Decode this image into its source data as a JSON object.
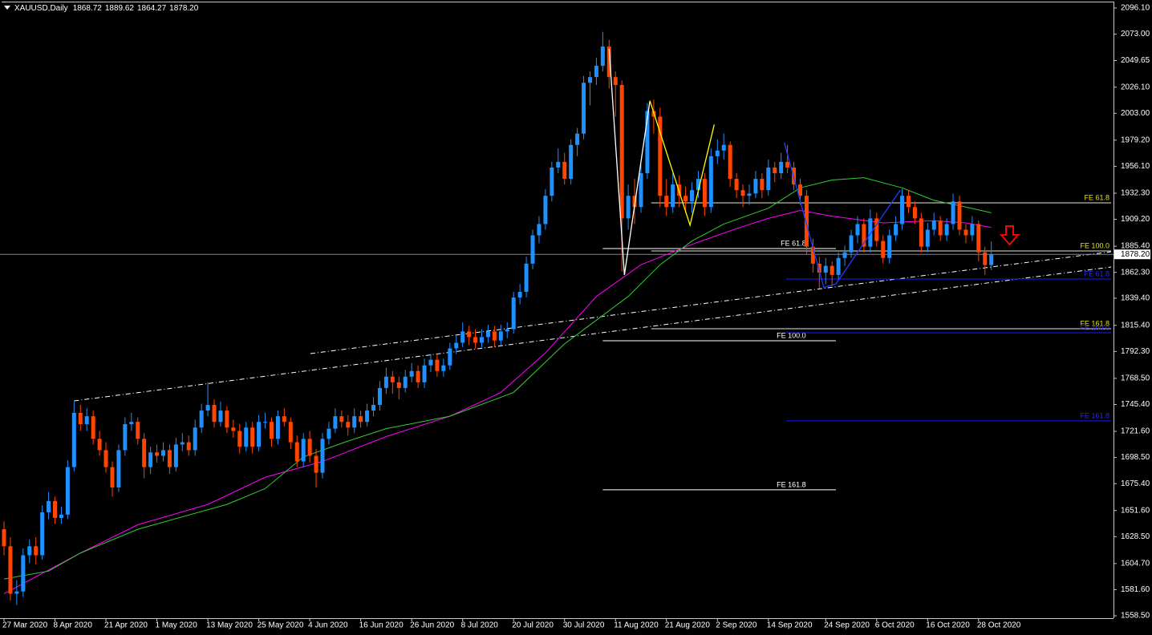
{
  "chart_data": {
    "type": "candlestick",
    "header": {
      "symbol": "XAUUSD,Daily",
      "values": [
        "1868.72",
        "1889.62",
        "1864.27",
        "1878.20"
      ]
    },
    "ylim": [
      1558.5,
      2096.1
    ],
    "yticks": [
      {
        "value": 2096.1,
        "label": "2096.10"
      },
      {
        "value": 2073,
        "label": "2073.00"
      },
      {
        "value": 2049.65,
        "label": "2049.65"
      },
      {
        "value": 2026.1,
        "label": "2026.10"
      },
      {
        "value": 2003,
        "label": "2003.00"
      },
      {
        "value": 1979.2,
        "label": "1979.20"
      },
      {
        "value": 1956.1,
        "label": "1956.10"
      },
      {
        "value": 1932.3,
        "label": "1932.30"
      },
      {
        "value": 1909.2,
        "label": "1909.20"
      },
      {
        "value": 1885.4,
        "label": "1885.40"
      },
      {
        "value": 1862.3,
        "label": "1862.30"
      },
      {
        "value": 1839.4,
        "label": "1839.40"
      },
      {
        "value": 1815.4,
        "label": "1815.40"
      },
      {
        "value": 1792.3,
        "label": "1792.30"
      },
      {
        "value": 1768.5,
        "label": "1768.50"
      },
      {
        "value": 1745.4,
        "label": "1745.40"
      },
      {
        "value": 1721.6,
        "label": "1721.60"
      },
      {
        "value": 1698.5,
        "label": "1698.50"
      },
      {
        "value": 1675.4,
        "label": "1675.40"
      },
      {
        "value": 1651.6,
        "label": "1651.60"
      },
      {
        "value": 1628.5,
        "label": "1628.50"
      },
      {
        "value": 1604.7,
        "label": "1604.70"
      },
      {
        "value": 1581.6,
        "label": "1581.60"
      },
      {
        "value": 1558.5,
        "label": "1558.50"
      }
    ],
    "bull_color": "#1e90ff",
    "bear_color": "#ff4500",
    "categories": [
      "27 Mar 2020",
      null,
      null,
      null,
      null,
      null,
      null,
      null,
      "8 Apr 2020",
      null,
      null,
      null,
      null,
      null,
      null,
      null,
      "21 Apr 2020",
      null,
      null,
      null,
      null,
      null,
      null,
      null,
      "1 May 2020",
      null,
      null,
      null,
      null,
      null,
      null,
      null,
      "13 May 2020",
      null,
      null,
      null,
      null,
      null,
      null,
      null,
      "25 May 2020",
      null,
      null,
      null,
      null,
      null,
      null,
      null,
      "4 Jun 2020",
      null,
      null,
      null,
      null,
      null,
      null,
      null,
      "16 Jun 2020",
      null,
      null,
      null,
      null,
      null,
      null,
      null,
      "26 Jun 2020",
      null,
      null,
      null,
      null,
      null,
      null,
      null,
      "8 Jul 2020",
      null,
      null,
      null,
      null,
      null,
      null,
      null,
      "20 Jul 2020",
      null,
      null,
      null,
      null,
      null,
      null,
      null,
      "30 Jul 2020",
      null,
      null,
      null,
      null,
      null,
      null,
      null,
      "11 Aug 2020",
      null,
      null,
      null,
      null,
      null,
      null,
      null,
      "21 Aug 2020",
      null,
      null,
      null,
      null,
      null,
      null,
      null,
      "2 Sep 2020",
      null,
      null,
      null,
      null,
      null,
      null,
      null,
      "14 Sep 2020",
      null,
      null,
      null,
      null,
      null,
      null,
      null,
      null,
      "24 Sep 2020",
      null,
      null,
      null,
      null,
      null,
      null,
      null,
      "6 Oct 2020",
      null,
      null,
      null,
      null,
      null,
      null,
      null,
      "16 Oct 2020",
      null,
      null,
      null,
      null,
      null,
      null,
      null,
      "28 Oct 2020",
      null,
      null
    ],
    "candles": [
      [
        1635,
        1642,
        1612,
        1620
      ],
      [
        1620,
        1628,
        1572,
        1578
      ],
      [
        1578,
        1590,
        1568,
        1580
      ],
      [
        1580,
        1618,
        1575,
        1612
      ],
      [
        1612,
        1626,
        1605,
        1620
      ],
      [
        1620,
        1628,
        1604,
        1612
      ],
      [
        1612,
        1656,
        1608,
        1650
      ],
      [
        1650,
        1668,
        1644,
        1660
      ],
      [
        1660,
        1664,
        1640,
        1645
      ],
      [
        1645,
        1655,
        1640,
        1648
      ],
      [
        1648,
        1696,
        1644,
        1690
      ],
      [
        1690,
        1748,
        1686,
        1738
      ],
      [
        1738,
        1745,
        1722,
        1728
      ],
      [
        1728,
        1742,
        1722,
        1735
      ],
      [
        1735,
        1740,
        1710,
        1715
      ],
      [
        1715,
        1722,
        1700,
        1705
      ],
      [
        1705,
        1712,
        1685,
        1690
      ],
      [
        1690,
        1695,
        1664,
        1672
      ],
      [
        1672,
        1710,
        1668,
        1705
      ],
      [
        1705,
        1734,
        1700,
        1728
      ],
      [
        1728,
        1738,
        1722,
        1730
      ],
      [
        1730,
        1734,
        1710,
        1715
      ],
      [
        1715,
        1720,
        1680,
        1690
      ],
      [
        1690,
        1708,
        1684,
        1703
      ],
      [
        1703,
        1710,
        1694,
        1700
      ],
      [
        1700,
        1712,
        1695,
        1705
      ],
      [
        1705,
        1710,
        1684,
        1690
      ],
      [
        1690,
        1716,
        1686,
        1710
      ],
      [
        1710,
        1720,
        1704,
        1712
      ],
      [
        1712,
        1718,
        1700,
        1705
      ],
      [
        1705,
        1732,
        1700,
        1725
      ],
      [
        1725,
        1746,
        1720,
        1740
      ],
      [
        1740,
        1765,
        1735,
        1745
      ],
      [
        1745,
        1750,
        1725,
        1730
      ],
      [
        1730,
        1748,
        1726,
        1740
      ],
      [
        1740,
        1744,
        1720,
        1725
      ],
      [
        1725,
        1732,
        1716,
        1722
      ],
      [
        1722,
        1728,
        1702,
        1708
      ],
      [
        1708,
        1730,
        1704,
        1725
      ],
      [
        1725,
        1730,
        1702,
        1708
      ],
      [
        1708,
        1736,
        1704,
        1730
      ],
      [
        1730,
        1738,
        1724,
        1730
      ],
      [
        1730,
        1734,
        1708,
        1715
      ],
      [
        1715,
        1740,
        1710,
        1735
      ],
      [
        1735,
        1742,
        1726,
        1730
      ],
      [
        1730,
        1734,
        1706,
        1712
      ],
      [
        1712,
        1718,
        1690,
        1695
      ],
      [
        1695,
        1720,
        1690,
        1715
      ],
      [
        1715,
        1722,
        1694,
        1700
      ],
      [
        1700,
        1706,
        1672,
        1685
      ],
      [
        1685,
        1720,
        1680,
        1715
      ],
      [
        1715,
        1730,
        1710,
        1724
      ],
      [
        1724,
        1742,
        1720,
        1735
      ],
      [
        1735,
        1740,
        1725,
        1730
      ],
      [
        1730,
        1736,
        1718,
        1725
      ],
      [
        1725,
        1742,
        1720,
        1735
      ],
      [
        1735,
        1740,
        1725,
        1730
      ],
      [
        1730,
        1746,
        1726,
        1740
      ],
      [
        1740,
        1752,
        1735,
        1745
      ],
      [
        1745,
        1766,
        1740,
        1760
      ],
      [
        1760,
        1778,
        1755,
        1770
      ],
      [
        1770,
        1775,
        1755,
        1765
      ],
      [
        1765,
        1770,
        1750,
        1760
      ],
      [
        1760,
        1776,
        1756,
        1770
      ],
      [
        1770,
        1782,
        1765,
        1775
      ],
      [
        1775,
        1780,
        1760,
        1765
      ],
      [
        1765,
        1786,
        1760,
        1780
      ],
      [
        1780,
        1790,
        1774,
        1785
      ],
      [
        1785,
        1790,
        1770,
        1775
      ],
      [
        1775,
        1786,
        1770,
        1780
      ],
      [
        1780,
        1800,
        1776,
        1795
      ],
      [
        1795,
        1806,
        1790,
        1800
      ],
      [
        1800,
        1818,
        1796,
        1810
      ],
      [
        1810,
        1815,
        1798,
        1805
      ],
      [
        1805,
        1812,
        1795,
        1800
      ],
      [
        1800,
        1812,
        1796,
        1805
      ],
      [
        1805,
        1816,
        1800,
        1810
      ],
      [
        1810,
        1815,
        1796,
        1802
      ],
      [
        1802,
        1816,
        1798,
        1810
      ],
      [
        1810,
        1818,
        1804,
        1812
      ],
      [
        1812,
        1845,
        1808,
        1840
      ],
      [
        1840,
        1852,
        1834,
        1845
      ],
      [
        1845,
        1876,
        1840,
        1870
      ],
      [
        1870,
        1900,
        1865,
        1895
      ],
      [
        1895,
        1912,
        1888,
        1905
      ],
      [
        1905,
        1936,
        1900,
        1930
      ],
      [
        1930,
        1960,
        1925,
        1955
      ],
      [
        1955,
        1972,
        1950,
        1960
      ],
      [
        1960,
        1968,
        1940,
        1945
      ],
      [
        1945,
        1980,
        1940,
        1975
      ],
      [
        1975,
        1990,
        1965,
        1985
      ],
      [
        1985,
        2036,
        1980,
        2030
      ],
      [
        2030,
        2040,
        2010,
        2035
      ],
      [
        2035,
        2052,
        2028,
        2045
      ],
      [
        2045,
        2075,
        2040,
        2062
      ],
      [
        2062,
        2068,
        2025,
        2035
      ],
      [
        2035,
        2040,
        2000,
        2028
      ],
      [
        2028,
        2032,
        1863,
        1910
      ],
      [
        1910,
        1940,
        1900,
        1930
      ],
      [
        1930,
        1945,
        1905,
        1920
      ],
      [
        1920,
        1958,
        1915,
        1950
      ],
      [
        1950,
        2012,
        1945,
        2005
      ],
      [
        2005,
        2015,
        1985,
        2000
      ],
      [
        2000,
        2008,
        1920,
        1930
      ],
      [
        1930,
        1945,
        1912,
        1920
      ],
      [
        1920,
        1950,
        1915,
        1940
      ],
      [
        1940,
        1948,
        1920,
        1930
      ],
      [
        1930,
        1938,
        1915,
        1925
      ],
      [
        1925,
        1942,
        1915,
        1935
      ],
      [
        1935,
        1952,
        1928,
        1945
      ],
      [
        1945,
        1950,
        1912,
        1920
      ],
      [
        1920,
        1972,
        1915,
        1965
      ],
      [
        1965,
        1980,
        1958,
        1970
      ],
      [
        1970,
        1985,
        1962,
        1975
      ],
      [
        1975,
        1978,
        1938,
        1945
      ],
      [
        1945,
        1950,
        1928,
        1935
      ],
      [
        1935,
        1940,
        1920,
        1930
      ],
      [
        1930,
        1940,
        1922,
        1932
      ],
      [
        1932,
        1952,
        1928,
        1945
      ],
      [
        1945,
        1950,
        1928,
        1935
      ],
      [
        1935,
        1962,
        1930,
        1955
      ],
      [
        1955,
        1960,
        1942,
        1950
      ],
      [
        1950,
        1968,
        1945,
        1960
      ],
      [
        1960,
        1975,
        1950,
        1955
      ],
      [
        1955,
        1960,
        1935,
        1940
      ],
      [
        1940,
        1945,
        1922,
        1930
      ],
      [
        1930,
        1935,
        1878,
        1885
      ],
      [
        1885,
        1892,
        1862,
        1870
      ],
      [
        1870,
        1876,
        1848,
        1862
      ],
      [
        1862,
        1875,
        1852,
        1868
      ],
      [
        1868,
        1872,
        1850,
        1860
      ],
      [
        1860,
        1880,
        1855,
        1875
      ],
      [
        1875,
        1886,
        1868,
        1880
      ],
      [
        1880,
        1900,
        1875,
        1895
      ],
      [
        1895,
        1912,
        1888,
        1905
      ],
      [
        1905,
        1910,
        1880,
        1885
      ],
      [
        1885,
        1918,
        1880,
        1910
      ],
      [
        1910,
        1915,
        1885,
        1890
      ],
      [
        1890,
        1895,
        1870,
        1875
      ],
      [
        1875,
        1900,
        1870,
        1895
      ],
      [
        1895,
        1912,
        1890,
        1905
      ],
      [
        1905,
        1936,
        1900,
        1930
      ],
      [
        1930,
        1935,
        1915,
        1920
      ],
      [
        1920,
        1925,
        1905,
        1910
      ],
      [
        1910,
        1915,
        1880,
        1885
      ],
      [
        1885,
        1906,
        1880,
        1900
      ],
      [
        1900,
        1915,
        1895,
        1908
      ],
      [
        1908,
        1912,
        1890,
        1895
      ],
      [
        1895,
        1910,
        1890,
        1905
      ],
      [
        1905,
        1932,
        1900,
        1925
      ],
      [
        1925,
        1930,
        1895,
        1900
      ],
      [
        1900,
        1905,
        1888,
        1895
      ],
      [
        1895,
        1912,
        1890,
        1905
      ],
      [
        1905,
        1908,
        1872,
        1880
      ],
      [
        1880,
        1885,
        1860,
        1868.72
      ],
      [
        1868.72,
        1889.62,
        1864.27,
        1878.2
      ]
    ],
    "moving_averages": [
      {
        "color": "#ff00ff",
        "x": [
          0,
          12,
          21,
          32,
          41,
          50,
          60,
          70,
          78,
          85,
          93,
          100,
          108,
          115,
          120,
          125,
          130,
          138,
          146,
          151,
          155
        ],
        "values": [
          1578,
          1614,
          1639,
          1657,
          1681,
          1695,
          1717,
          1735,
          1756,
          1791,
          1841,
          1869,
          1887,
          1901,
          1910,
          1917,
          1912,
          1906,
          1908,
          1906,
          1902
        ]
      },
      {
        "color": "#32cd32",
        "x": [
          0,
          7,
          12,
          21,
          35,
          41,
          47,
          54,
          60,
          70,
          80,
          88,
          93,
          98,
          103,
          108,
          113,
          120,
          125,
          130,
          135,
          141,
          146,
          151,
          155
        ],
        "values": [
          1591,
          1598,
          1614,
          1635,
          1657,
          1671,
          1699,
          1713,
          1724,
          1735,
          1756,
          1799,
          1820,
          1841,
          1869,
          1890,
          1905,
          1919,
          1937,
          1944,
          1946,
          1937,
          1926,
          1920,
          1915
        ]
      }
    ],
    "trendlines": [
      {
        "color": "#ffffff",
        "x": [
          48.1,
          173.8
        ],
        "values": [
          1790.4,
          1880.5
        ]
      },
      {
        "color": "#ffffff",
        "x": [
          11,
          173.8
        ],
        "values": [
          1748.6,
          1867
        ]
      }
    ],
    "zigzags": [
      {
        "color": "#ffffff",
        "x": [
          95,
          97.4,
          101.4
        ],
        "values": [
          2060,
          1860,
          2014
        ]
      },
      {
        "color": "#ffff00",
        "x": [
          101.4,
          107.7,
          111.5
        ],
        "values": [
          2014,
          1904,
          1993
        ]
      },
      {
        "color": "#1e3cff",
        "x": [
          122.5,
          128.7,
          130.6,
          140.7
        ],
        "values": [
          1977,
          1849,
          1852,
          1935
        ]
      }
    ],
    "fibs": [
      {
        "line_color": "#ffffff",
        "label_color": "#ffffff",
        "from": 94,
        "to": 130.6,
        "extend_right": false,
        "levels": [
          {
            "label": "FE 61.8",
            "value": 1883.3
          },
          {
            "label": "FE 100.0",
            "value": 1801.8
          },
          {
            "label": "FE 161.8",
            "value": 1669.9
          }
        ]
      },
      {
        "line_color": "#e8e8d0",
        "label_color": "#e6e600",
        "from": 101.6,
        "to": 173.8,
        "extend_right": true,
        "levels": [
          {
            "label": "FE 61.8",
            "value": 1923.8
          },
          {
            "label": "FE 100.0",
            "value": 1881.2
          },
          {
            "label": "FE 161.8",
            "value": 1812.4
          }
        ]
      },
      {
        "line_color": "#1a1aff",
        "label_color": "#2828ff",
        "from": 122.8,
        "to": 173.8,
        "extend_right": true,
        "levels": [
          {
            "label": "FE 61.8",
            "value": 1856.4
          },
          {
            "label": "FE 100.0",
            "value": 1808.9
          },
          {
            "label": "FE 161.8",
            "value": 1730.9
          }
        ]
      }
    ],
    "current_price": {
      "value": 1878.2,
      "label": "1878.20",
      "color": "#778899"
    }
  }
}
